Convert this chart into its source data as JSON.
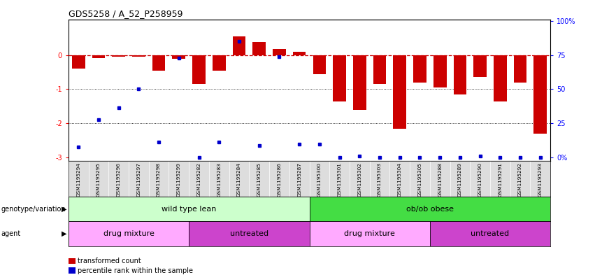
{
  "title": "GDS5258 / A_52_P258959",
  "samples": [
    "GSM1195294",
    "GSM1195295",
    "GSM1195296",
    "GSM1195297",
    "GSM1195298",
    "GSM1195299",
    "GSM1195282",
    "GSM1195283",
    "GSM1195284",
    "GSM1195285",
    "GSM1195286",
    "GSM1195287",
    "GSM1195300",
    "GSM1195301",
    "GSM1195302",
    "GSM1195303",
    "GSM1195304",
    "GSM1195305",
    "GSM1195288",
    "GSM1195289",
    "GSM1195290",
    "GSM1195291",
    "GSM1195292",
    "GSM1195293"
  ],
  "bar_values": [
    -0.4,
    -0.08,
    -0.05,
    -0.05,
    -0.45,
    -0.1,
    -0.85,
    -0.45,
    0.55,
    0.38,
    0.18,
    0.1,
    -0.55,
    -1.35,
    -1.6,
    -0.85,
    -2.15,
    -0.8,
    -0.95,
    -1.15,
    -0.65,
    -1.35,
    -0.8,
    -2.3
  ],
  "dot_values": [
    -2.7,
    -1.9,
    -1.55,
    -1.0,
    -2.55,
    -0.08,
    -3.0,
    -2.55,
    0.4,
    -2.65,
    -0.05,
    -2.6,
    -2.6,
    -3.0,
    -2.95,
    -3.0,
    -3.0,
    -3.0,
    -3.0,
    -3.0,
    -2.95,
    -3.0,
    -3.0,
    -3.0
  ],
  "bar_color": "#cc0000",
  "dot_color": "#0000cc",
  "ylim": [
    -3.1,
    1.05
  ],
  "yticks": [
    0,
    -1,
    -2,
    -3
  ],
  "ytick_labels": [
    "0",
    "-1",
    "-2",
    "-3"
  ],
  "right_tick_vals": [
    -3.0,
    -2.0,
    -1.0,
    0.0,
    1.0
  ],
  "right_tick_labels": [
    "0%",
    "25",
    "50",
    "75",
    "100%"
  ],
  "genotype_groups": [
    {
      "label": "wild type lean",
      "start": 0,
      "end": 11,
      "color": "#ccffcc"
    },
    {
      "label": "ob/ob obese",
      "start": 12,
      "end": 23,
      "color": "#44dd44"
    }
  ],
  "agent_groups": [
    {
      "label": "drug mixture",
      "start": 0,
      "end": 5,
      "color": "#ffaaff"
    },
    {
      "label": "untreated",
      "start": 6,
      "end": 11,
      "color": "#cc44cc"
    },
    {
      "label": "drug mixture",
      "start": 12,
      "end": 17,
      "color": "#ffaaff"
    },
    {
      "label": "untreated",
      "start": 18,
      "end": 23,
      "color": "#cc44cc"
    }
  ],
  "genotype_row_label": "genotype/variation",
  "agent_row_label": "agent",
  "legend_items": [
    {
      "label": "transformed count",
      "color": "#cc0000"
    },
    {
      "label": "percentile rank within the sample",
      "color": "#0000cc"
    }
  ],
  "background_color": "#ffffff",
  "xticklabel_bg": "#dddddd"
}
